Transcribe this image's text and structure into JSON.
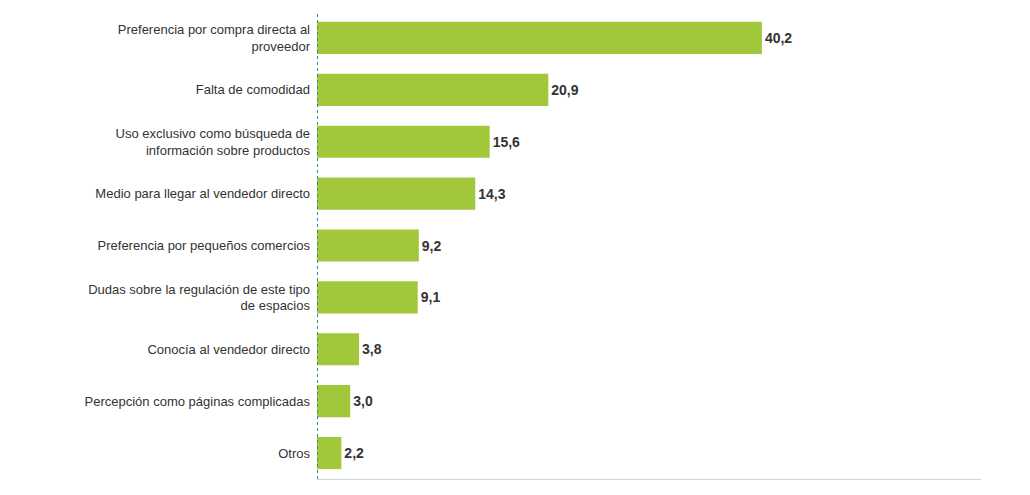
{
  "chart_data": {
    "type": "bar",
    "orientation": "horizontal",
    "categories": [
      "Preferencia por compra directa al proveedor",
      "Falta de comodidad",
      "Uso exclusivo como búsqueda de información sobre productos",
      "Medio para llegar al vendedor directo",
      "Preferencia por pequeños comercios",
      "Dudas sobre la regulación de este tipo de espacios",
      "Conocía al vendedor directo",
      "Percepción como páginas complicadas",
      "Otros"
    ],
    "values": [
      40.2,
      20.9,
      15.6,
      14.3,
      9.2,
      9.1,
      3.8,
      3.0,
      2.2
    ],
    "value_labels": [
      "40,2",
      "20,9",
      "15,6",
      "14,3",
      "9,2",
      "9,1",
      "3,8",
      "3,0",
      "2,2"
    ],
    "color": "#a1c83a",
    "xlim": [
      0,
      60
    ],
    "xticks": [],
    "data_labels": true,
    "tick_labels": "y",
    "grid": false
  }
}
